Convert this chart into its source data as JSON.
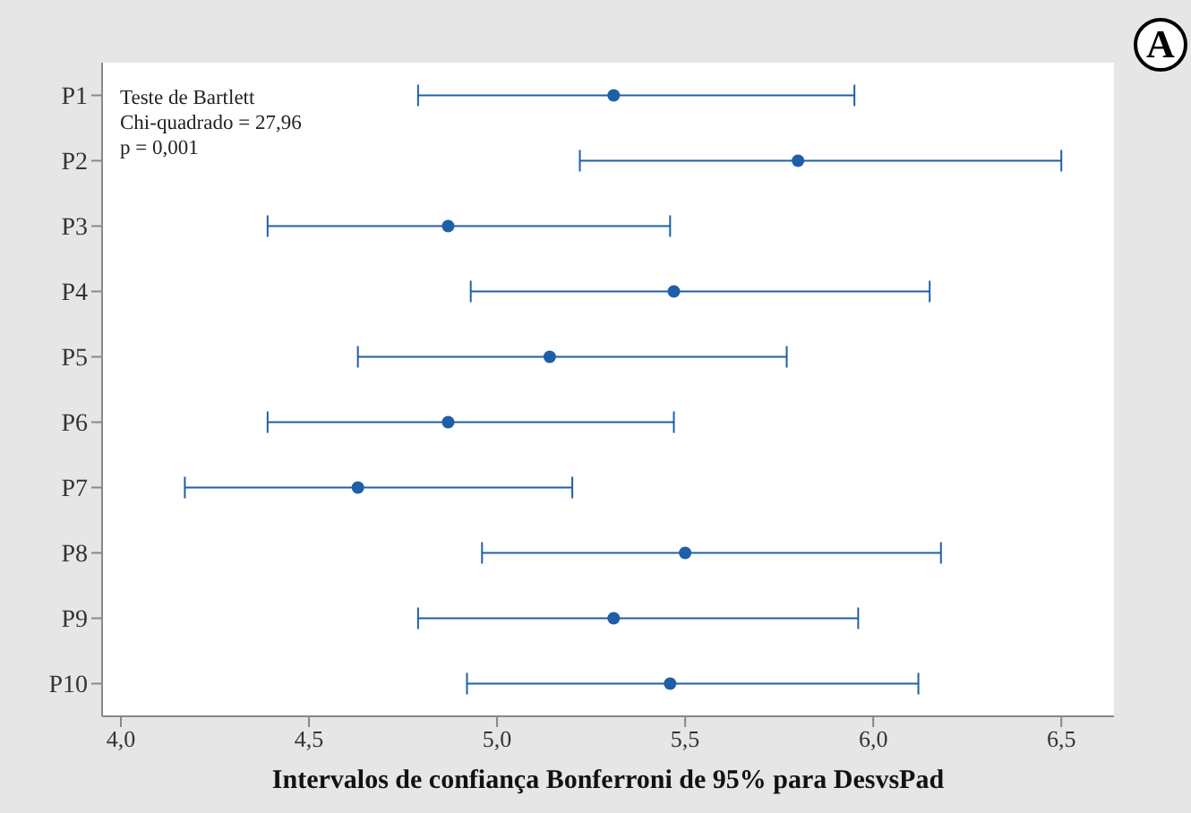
{
  "chart_data": {
    "type": "scatter",
    "orientation": "horizontal",
    "xlabel": "Intervalos de confiança Bonferroni de 95% para DesvsPad",
    "categories": [
      "P1",
      "P2",
      "P3",
      "P4",
      "P5",
      "P6",
      "P7",
      "P8",
      "P9",
      "P10"
    ],
    "series": [
      {
        "color": "#1f5fa8",
        "values": [
          5.31,
          5.8,
          4.87,
          5.47,
          5.14,
          4.87,
          4.63,
          5.5,
          5.31,
          5.46
        ],
        "errors": [
          [
            4.79,
            5.95
          ],
          [
            5.22,
            6.5
          ],
          [
            4.39,
            5.46
          ],
          [
            4.93,
            6.15
          ],
          [
            4.63,
            5.77
          ],
          [
            4.39,
            5.47
          ],
          [
            4.17,
            5.2
          ],
          [
            4.96,
            6.18
          ],
          [
            4.79,
            5.96
          ],
          [
            4.92,
            6.12
          ]
        ]
      }
    ],
    "xlim": [
      3.95,
      6.64
    ],
    "xticks": [
      {
        "value": 4,
        "label": "4,0"
      },
      {
        "value": 4.5,
        "label": "4,5"
      },
      {
        "value": 5,
        "label": "5,0"
      },
      {
        "value": 5.5,
        "label": "5,5"
      },
      {
        "value": 6,
        "label": "6,0"
      },
      {
        "value": 6.5,
        "label": "6,5"
      }
    ],
    "annotations": [
      "Teste de Bartlett",
      "Chi-quadrado = 27,96",
      "p = 0,001",
      "A"
    ],
    "grid": false,
    "marker": "circle"
  }
}
